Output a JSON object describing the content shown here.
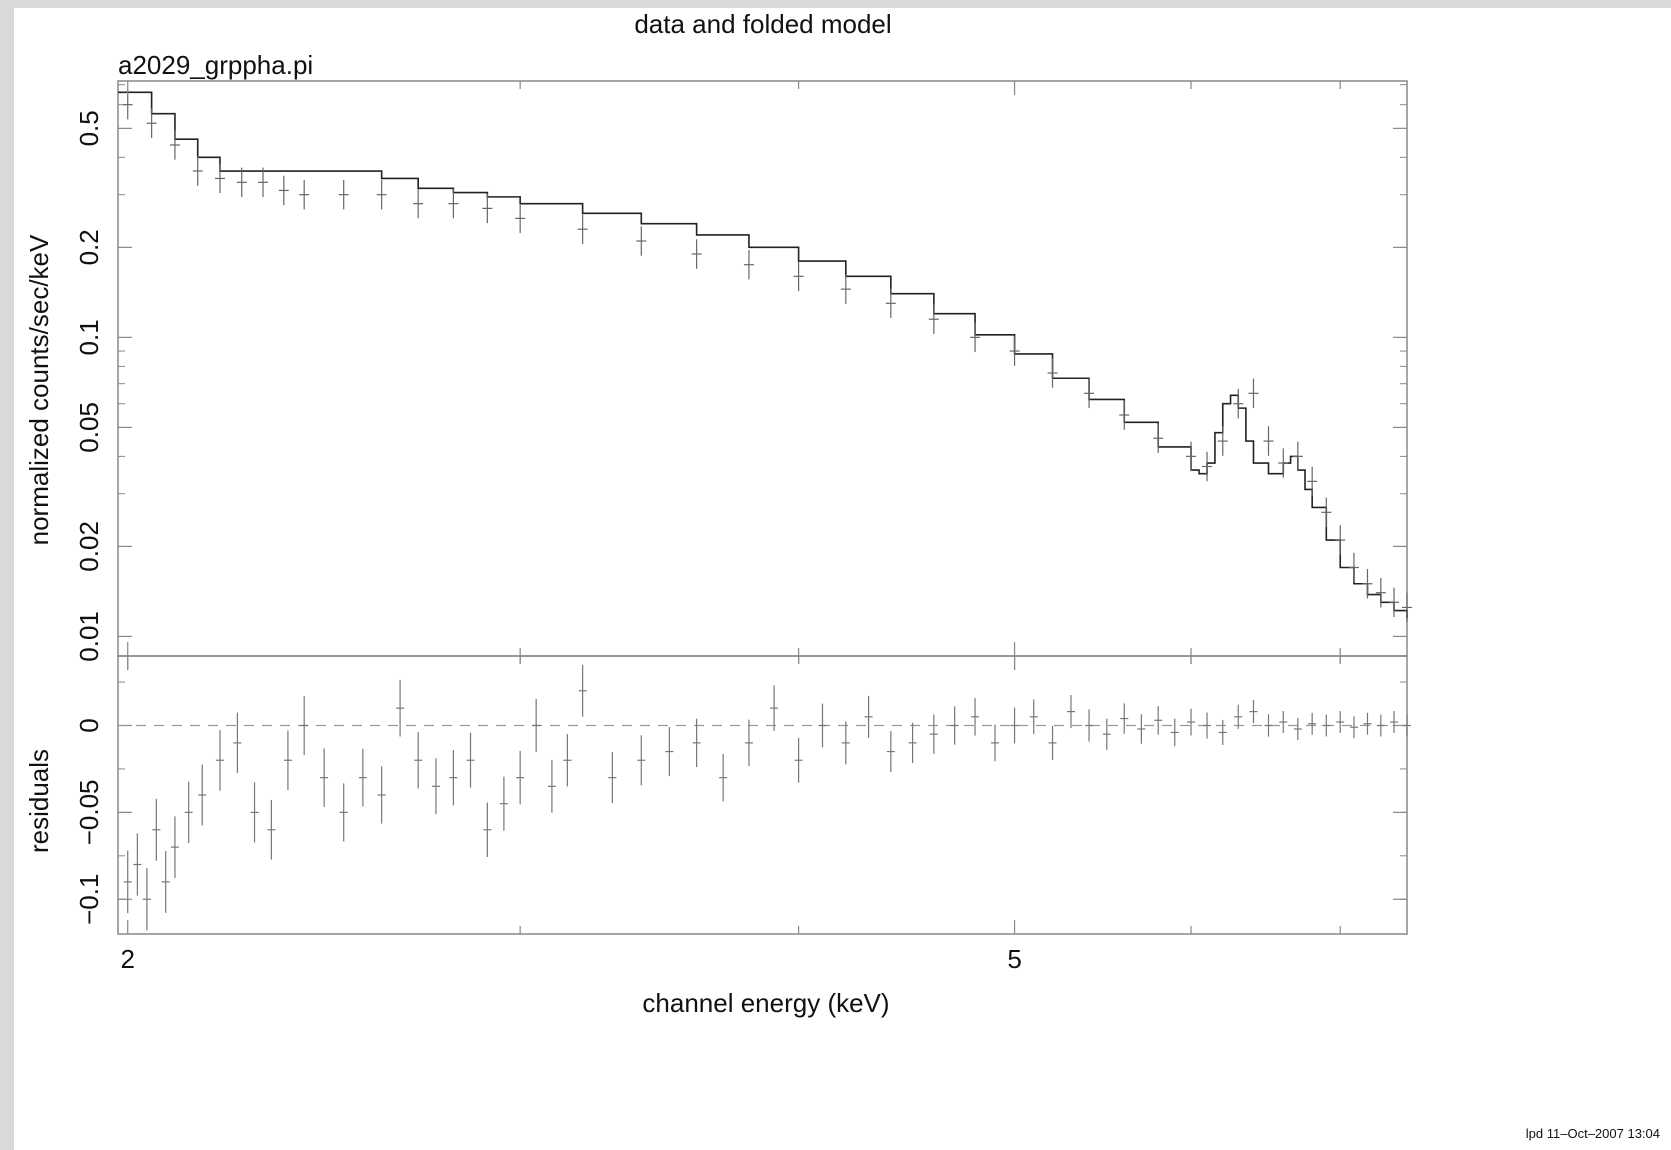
{
  "chart_data": {
    "type": "scatter",
    "title": "data and folded model",
    "subtitle": "a2029_grppha.pi",
    "xlabel": "channel energy (keV)",
    "x_scale": "log",
    "xlim": [
      1.98,
      7.5
    ],
    "x_tick_labels": [
      "2",
      "5"
    ],
    "footer": "lpd 11–Oct–2007 13:04",
    "top_panel": {
      "ylabel": "normalized counts/sec/keV",
      "y_scale": "log",
      "ylim": [
        0.0086,
        0.72
      ],
      "y_tick_labels": [
        "0.01",
        "0.02",
        "0.05",
        "0.1",
        "0.2",
        "0.5"
      ],
      "data_series": {
        "name": "data",
        "x": [
          2.0,
          2.05,
          2.1,
          2.15,
          2.2,
          2.25,
          2.3,
          2.35,
          2.4,
          2.5,
          2.6,
          2.7,
          2.8,
          2.9,
          3.0,
          3.2,
          3.4,
          3.6,
          3.8,
          4.0,
          4.2,
          4.4,
          4.6,
          4.8,
          5.0,
          5.2,
          5.4,
          5.6,
          5.8,
          6.0,
          6.1,
          6.2,
          6.3,
          6.4,
          6.5,
          6.6,
          6.7,
          6.8,
          6.9,
          7.0,
          7.1,
          7.2,
          7.3,
          7.4,
          7.5
        ],
        "y": [
          0.6,
          0.52,
          0.44,
          0.36,
          0.34,
          0.33,
          0.33,
          0.31,
          0.3,
          0.3,
          0.3,
          0.28,
          0.28,
          0.27,
          0.25,
          0.23,
          0.21,
          0.19,
          0.175,
          0.16,
          0.145,
          0.13,
          0.115,
          0.1,
          0.09,
          0.076,
          0.065,
          0.055,
          0.046,
          0.04,
          0.037,
          0.045,
          0.06,
          0.065,
          0.045,
          0.038,
          0.04,
          0.033,
          0.026,
          0.021,
          0.017,
          0.015,
          0.014,
          0.013,
          0.0125
        ]
      },
      "model_series": {
        "name": "folded model",
        "x": [
          1.98,
          2.05,
          2.1,
          2.15,
          2.2,
          2.3,
          2.4,
          2.5,
          2.6,
          2.7,
          2.8,
          2.9,
          3.0,
          3.2,
          3.4,
          3.6,
          3.8,
          4.0,
          4.2,
          4.4,
          4.6,
          4.8,
          5.0,
          5.2,
          5.4,
          5.6,
          5.8,
          6.0,
          6.05,
          6.1,
          6.15,
          6.2,
          6.25,
          6.3,
          6.35,
          6.4,
          6.5,
          6.6,
          6.65,
          6.7,
          6.75,
          6.8,
          6.9,
          7.0,
          7.1,
          7.2,
          7.3,
          7.4,
          7.5
        ],
        "y": [
          0.66,
          0.56,
          0.46,
          0.4,
          0.36,
          0.36,
          0.36,
          0.36,
          0.34,
          0.315,
          0.305,
          0.295,
          0.28,
          0.26,
          0.24,
          0.22,
          0.2,
          0.18,
          0.16,
          0.14,
          0.12,
          0.102,
          0.088,
          0.073,
          0.062,
          0.052,
          0.043,
          0.036,
          0.035,
          0.038,
          0.048,
          0.06,
          0.064,
          0.058,
          0.045,
          0.038,
          0.035,
          0.038,
          0.04,
          0.036,
          0.031,
          0.027,
          0.021,
          0.017,
          0.015,
          0.0138,
          0.013,
          0.0122,
          0.0115
        ]
      }
    },
    "bottom_panel": {
      "ylabel": "residuals",
      "ylim": [
        -0.12,
        0.04
      ],
      "y_tick_labels": [
        "0",
        "−0.05",
        "−0.1"
      ],
      "zero_line": "dashed",
      "series": {
        "name": "residuals",
        "x": [
          2.0,
          2.02,
          2.04,
          2.06,
          2.08,
          2.1,
          2.13,
          2.16,
          2.2,
          2.24,
          2.28,
          2.32,
          2.36,
          2.4,
          2.45,
          2.5,
          2.55,
          2.6,
          2.65,
          2.7,
          2.75,
          2.8,
          2.85,
          2.9,
          2.95,
          3.0,
          3.05,
          3.1,
          3.15,
          3.2,
          3.3,
          3.4,
          3.5,
          3.6,
          3.7,
          3.8,
          3.9,
          4.0,
          4.1,
          4.2,
          4.3,
          4.4,
          4.5,
          4.6,
          4.7,
          4.8,
          4.9,
          5.0,
          5.1,
          5.2,
          5.3,
          5.4,
          5.5,
          5.6,
          5.7,
          5.8,
          5.9,
          6.0,
          6.1,
          6.2,
          6.3,
          6.4,
          6.5,
          6.6,
          6.7,
          6.8,
          6.9,
          7.0,
          7.1,
          7.2,
          7.3,
          7.4,
          7.5
        ],
        "y": [
          -0.09,
          -0.08,
          -0.1,
          -0.06,
          -0.09,
          -0.07,
          -0.05,
          -0.04,
          -0.02,
          -0.01,
          -0.05,
          -0.06,
          -0.02,
          0.0,
          -0.03,
          -0.05,
          -0.03,
          -0.04,
          0.01,
          -0.02,
          -0.035,
          -0.03,
          -0.02,
          -0.06,
          -0.045,
          -0.03,
          0.0,
          -0.035,
          -0.02,
          0.02,
          -0.03,
          -0.02,
          -0.015,
          -0.01,
          -0.03,
          -0.01,
          0.01,
          -0.02,
          0.0,
          -0.01,
          0.005,
          -0.015,
          -0.01,
          -0.005,
          0.0,
          0.005,
          -0.01,
          0.0,
          0.005,
          -0.01,
          0.008,
          0.0,
          -0.005,
          0.004,
          -0.002,
          0.003,
          -0.004,
          0.002,
          0.0,
          -0.004,
          0.005,
          0.008,
          0.0,
          0.002,
          -0.002,
          0.001,
          0.0,
          0.002,
          -0.001,
          0.001,
          0.0,
          0.002,
          0.0
        ]
      }
    }
  }
}
